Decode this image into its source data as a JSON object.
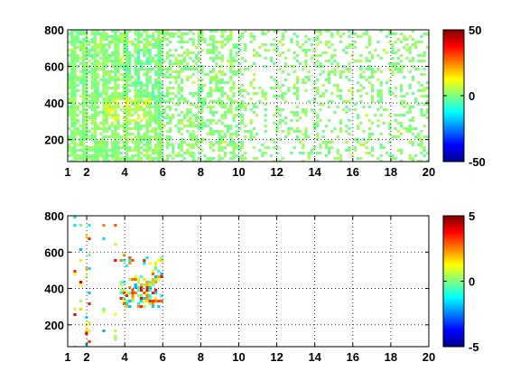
{
  "chart_data": [
    {
      "type": "heatmap",
      "title": "",
      "xlabel": "",
      "ylabel": "",
      "xlim": [
        1,
        20
      ],
      "ylim": [
        80,
        800
      ],
      "xticks": [
        1,
        2,
        4,
        6,
        8,
        10,
        12,
        14,
        16,
        18,
        20
      ],
      "yticks": [
        200,
        400,
        600,
        800
      ],
      "grid": true,
      "colorbar": {
        "colormap": "jet",
        "clim": [
          -50,
          50
        ],
        "ticks": [
          -50,
          0,
          50
        ]
      },
      "description_values": {
        "fill_density": "dense near x 1-6, sparse and streaky toward x 20",
        "dominant_value": 0,
        "hotspot": {
          "x": [
            3,
            5
          ],
          "y": [
            320,
            480
          ],
          "value_range": [
            5,
            15
          ]
        },
        "cool_patch": {
          "x": [
            4,
            6
          ],
          "y": [
            350,
            700
          ],
          "value_range": [
            -8,
            -3
          ]
        }
      }
    },
    {
      "type": "heatmap",
      "title": "",
      "xlabel": "",
      "ylabel": "",
      "xlim": [
        1,
        20
      ],
      "ylim": [
        80,
        800
      ],
      "xticks": [
        1,
        2,
        4,
        6,
        8,
        10,
        12,
        14,
        16,
        18,
        20
      ],
      "yticks": [
        200,
        400,
        600,
        800
      ],
      "grid": true,
      "colorbar": {
        "colormap": "jet",
        "clim": [
          -5,
          5
        ],
        "ticks": [
          -5,
          0,
          5
        ]
      },
      "description_values": {
        "cluster": {
          "x": [
            3.5,
            6
          ],
          "y": [
            300,
            600
          ],
          "value_range": [
            -2,
            5
          ]
        },
        "sparse_columns_x": [
          1.3,
          1.6,
          1.9,
          2.1,
          2.8,
          3.4
        ]
      }
    }
  ]
}
